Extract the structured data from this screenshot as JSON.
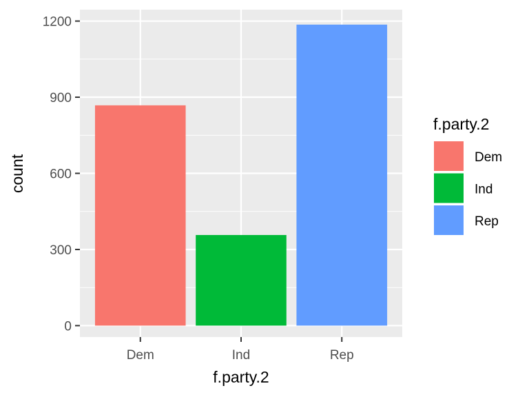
{
  "chart_data": {
    "type": "bar",
    "categories": [
      "Dem",
      "Ind",
      "Rep"
    ],
    "values": [
      868,
      357,
      1186
    ],
    "colors": [
      "#F8766D",
      "#00BA38",
      "#619CFF"
    ],
    "xlabel": "f.party.2",
    "ylabel": "count",
    "ylim": [
      -45,
      1245
    ],
    "yticks": [
      0,
      300,
      600,
      900,
      1200
    ],
    "grid": true,
    "panel_background": "#EBEBEB",
    "legend": {
      "title": "f.party.2",
      "position": "right",
      "entries": [
        "Dem",
        "Ind",
        "Rep"
      ]
    }
  }
}
